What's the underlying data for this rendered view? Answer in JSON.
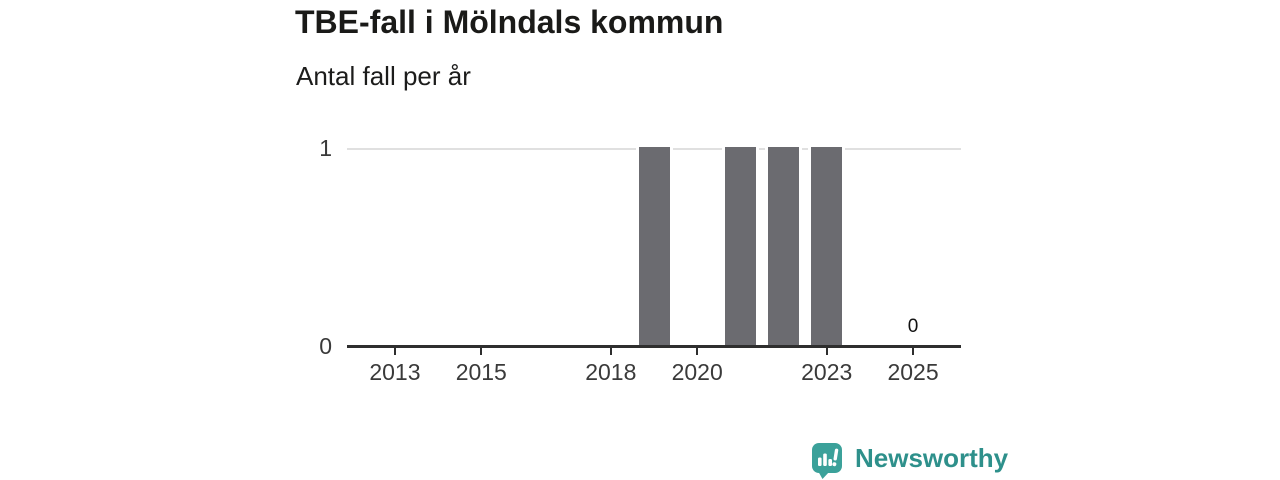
{
  "chart": {
    "title": "TBE-fall i Mölndals kommun",
    "subtitle": "Antal fall per år"
  },
  "chart_data": {
    "type": "bar",
    "title": "TBE-fall i Mölndals kommun",
    "subtitle": "Antal fall per år",
    "x": [
      2012,
      2013,
      2014,
      2015,
      2016,
      2017,
      2018,
      2019,
      2020,
      2021,
      2022,
      2023,
      2024,
      2025
    ],
    "values": [
      0,
      0,
      0,
      0,
      0,
      0,
      0,
      1,
      0,
      1,
      1,
      1,
      0,
      0
    ],
    "x_tick_labels": [
      "2013",
      "2015",
      "2018",
      "2020",
      "2023",
      "2025"
    ],
    "x_tick_years": [
      2013,
      2015,
      2018,
      2020,
      2023,
      2025
    ],
    "y_tick_labels": [
      "0",
      "1"
    ],
    "y_ticks": [
      0,
      1
    ],
    "ylim": [
      0,
      1
    ],
    "xlim": [
      2011.89,
      2026.11
    ],
    "grid": "horizontal-at-y1",
    "legend": "none",
    "value_labels": [
      {
        "x": 2025,
        "label": "0"
      }
    ],
    "colors": {
      "bar": "#6b6b70",
      "axis": "#2e2e2e",
      "gridline": "#e0e0e0",
      "tick_text": "#3a3a3a",
      "value_label_text": "#111111"
    }
  },
  "logo": {
    "text": "Newsworthy",
    "icon": "newsworthy-speech-bubble-bar-chart-icon",
    "icon_color": "#3ba19a",
    "text_color": "#2e908b"
  }
}
